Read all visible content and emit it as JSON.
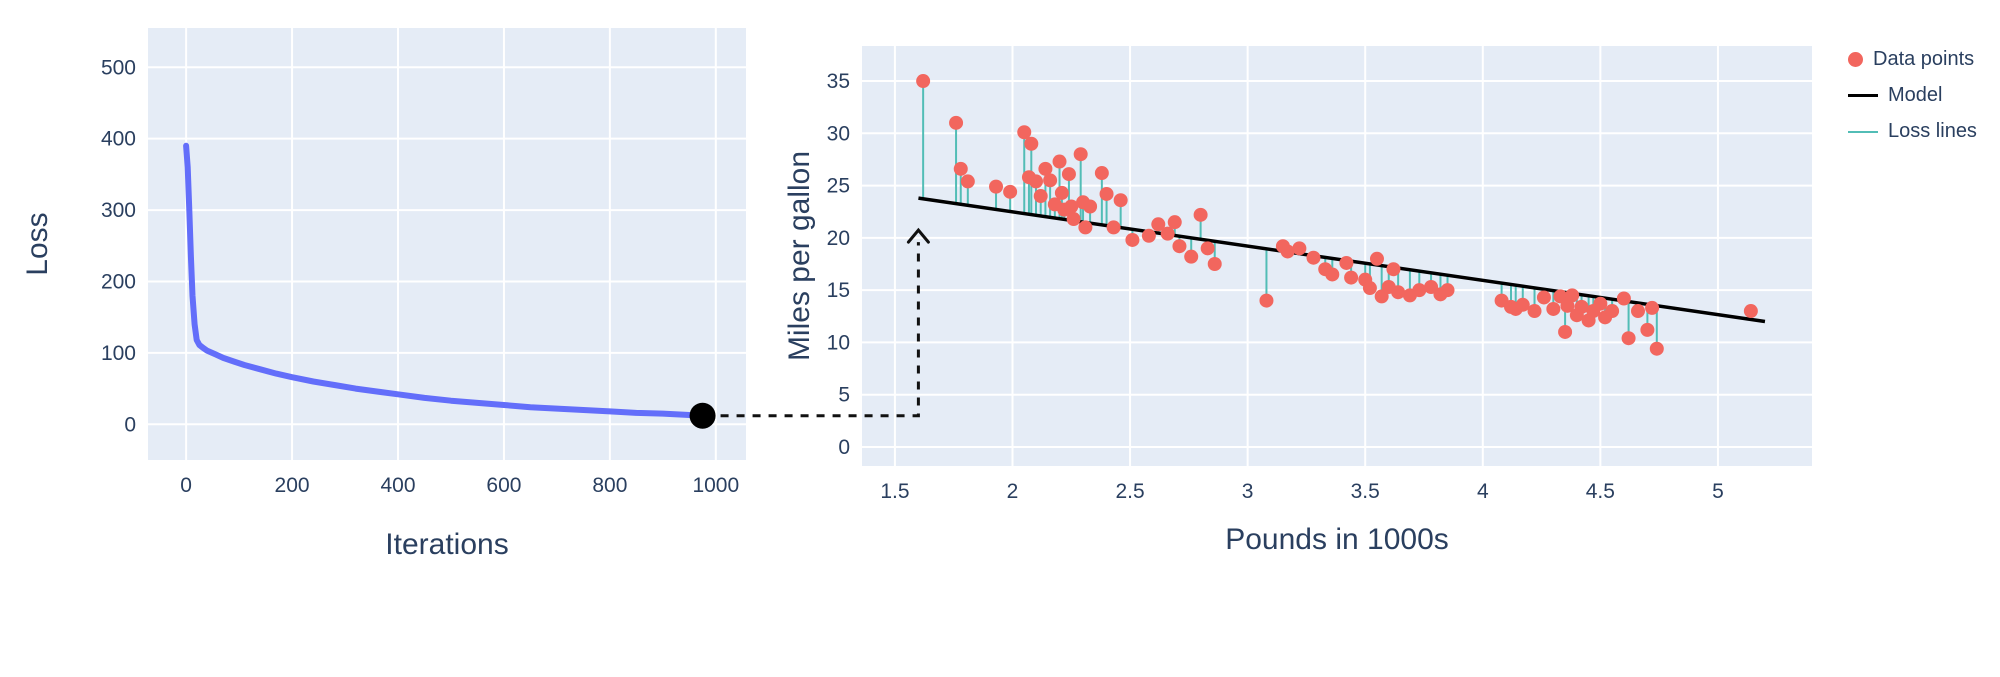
{
  "figure": {
    "background": "#ffffff",
    "plot_bg": "#e5ecf6",
    "grid_color": "#ffffff",
    "text_color": "#2a3f5f"
  },
  "annotation": {
    "type": "dashed-arrow",
    "from": "loss-curve-endpoint",
    "to": "model-line-start"
  },
  "chart_data": [
    {
      "type": "line",
      "name": "training-loss-curve",
      "title": "",
      "xlabel": "Iterations",
      "ylabel": "Loss",
      "xticks": [
        0,
        200,
        400,
        600,
        800,
        1000
      ],
      "yticks": [
        0,
        100,
        200,
        300,
        400,
        500
      ],
      "xlim": [
        -72,
        1057
      ],
      "ylim": [
        -50,
        555
      ],
      "grid": true,
      "line_color": "#636efa",
      "x": [
        0,
        3,
        6,
        9,
        12,
        16,
        20,
        25,
        32,
        40,
        55,
        70,
        90,
        110,
        140,
        170,
        200,
        240,
        280,
        320,
        360,
        400,
        450,
        500,
        550,
        600,
        650,
        700,
        750,
        800,
        850,
        900,
        950,
        975
      ],
      "y": [
        390,
        360,
        300,
        235,
        180,
        140,
        118,
        111,
        107,
        103,
        98,
        93,
        88,
        83,
        77,
        71,
        66,
        60,
        55,
        50,
        46,
        42,
        37,
        33,
        30,
        27,
        24,
        22,
        20,
        18,
        16,
        15,
        13,
        12
      ],
      "endpoint": {
        "x": 975,
        "y": 12,
        "color": "#000000"
      }
    },
    {
      "type": "scatter",
      "name": "mpg-vs-weight",
      "title": "",
      "xlabel": "Pounds in 1000s",
      "ylabel": "Miles per gallon",
      "xticks": [
        1.5,
        2,
        2.5,
        3,
        3.5,
        4,
        4.5,
        5
      ],
      "yticks": [
        0,
        5,
        10,
        15,
        20,
        25,
        30,
        35
      ],
      "xlim": [
        1.36,
        5.4
      ],
      "ylim": [
        -1.82,
        38.35
      ],
      "grid": true,
      "point_color": "#f2665e",
      "loss_line_color": "#52bdb6",
      "model": {
        "x_start": 1.6,
        "y_start": 23.8,
        "x_end": 5.2,
        "y_end": 12.0,
        "color": "#000000"
      },
      "legend": [
        {
          "label": "Data points",
          "marker": "dot",
          "color": "#f2665e"
        },
        {
          "label": "Model",
          "marker": "line",
          "color": "#000000"
        },
        {
          "label": "Loss lines",
          "marker": "line",
          "color": "#52bdb6"
        }
      ],
      "points": [
        [
          1.62,
          35
        ],
        [
          1.76,
          31
        ],
        [
          1.78,
          26.6
        ],
        [
          1.81,
          25.4
        ],
        [
          1.93,
          24.9
        ],
        [
          1.99,
          24.4
        ],
        [
          2.05,
          30.1
        ],
        [
          2.08,
          29.0
        ],
        [
          2.07,
          25.8
        ],
        [
          2.1,
          25.4
        ],
        [
          2.12,
          24.0
        ],
        [
          2.14,
          26.6
        ],
        [
          2.16,
          25.5
        ],
        [
          2.18,
          23.2
        ],
        [
          2.2,
          27.3
        ],
        [
          2.21,
          24.3
        ],
        [
          2.22,
          22.7
        ],
        [
          2.24,
          26.1
        ],
        [
          2.25,
          23.0
        ],
        [
          2.26,
          21.8
        ],
        [
          2.29,
          28.0
        ],
        [
          2.3,
          23.4
        ],
        [
          2.31,
          21.0
        ],
        [
          2.33,
          23.0
        ],
        [
          2.38,
          26.2
        ],
        [
          2.4,
          24.2
        ],
        [
          2.43,
          21.0
        ],
        [
          2.46,
          23.6
        ],
        [
          2.51,
          19.8
        ],
        [
          2.58,
          20.2
        ],
        [
          2.62,
          21.3
        ],
        [
          2.66,
          20.4
        ],
        [
          2.69,
          21.5
        ],
        [
          2.71,
          19.2
        ],
        [
          2.76,
          18.2
        ],
        [
          2.8,
          22.2
        ],
        [
          2.83,
          19.0
        ],
        [
          2.86,
          17.5
        ],
        [
          3.08,
          14.0
        ],
        [
          3.15,
          19.2
        ],
        [
          3.17,
          18.7
        ],
        [
          3.22,
          19.0
        ],
        [
          3.28,
          18.1
        ],
        [
          3.33,
          17.0
        ],
        [
          3.36,
          16.5
        ],
        [
          3.42,
          17.6
        ],
        [
          3.44,
          16.2
        ],
        [
          3.5,
          16.0
        ],
        [
          3.52,
          15.2
        ],
        [
          3.55,
          18.0
        ],
        [
          3.57,
          14.4
        ],
        [
          3.6,
          15.3
        ],
        [
          3.62,
          17.0
        ],
        [
          3.64,
          14.8
        ],
        [
          3.69,
          14.5
        ],
        [
          3.73,
          15.0
        ],
        [
          3.78,
          15.3
        ],
        [
          3.82,
          14.6
        ],
        [
          3.85,
          15.0
        ],
        [
          4.08,
          14.0
        ],
        [
          4.12,
          13.4
        ],
        [
          4.14,
          13.2
        ],
        [
          4.17,
          13.6
        ],
        [
          4.22,
          13.0
        ],
        [
          4.26,
          14.3
        ],
        [
          4.3,
          13.2
        ],
        [
          4.33,
          14.4
        ],
        [
          4.35,
          11.0
        ],
        [
          4.36,
          13.5
        ],
        [
          4.38,
          14.5
        ],
        [
          4.4,
          12.6
        ],
        [
          4.42,
          13.4
        ],
        [
          4.45,
          12.1
        ],
        [
          4.47,
          13.0
        ],
        [
          4.5,
          13.7
        ],
        [
          4.52,
          12.4
        ],
        [
          4.55,
          13.0
        ],
        [
          4.6,
          14.2
        ],
        [
          4.62,
          10.4
        ],
        [
          4.66,
          13.0
        ],
        [
          4.7,
          11.2
        ],
        [
          4.72,
          13.3
        ],
        [
          4.74,
          9.4
        ],
        [
          5.14,
          13.0
        ]
      ]
    }
  ]
}
